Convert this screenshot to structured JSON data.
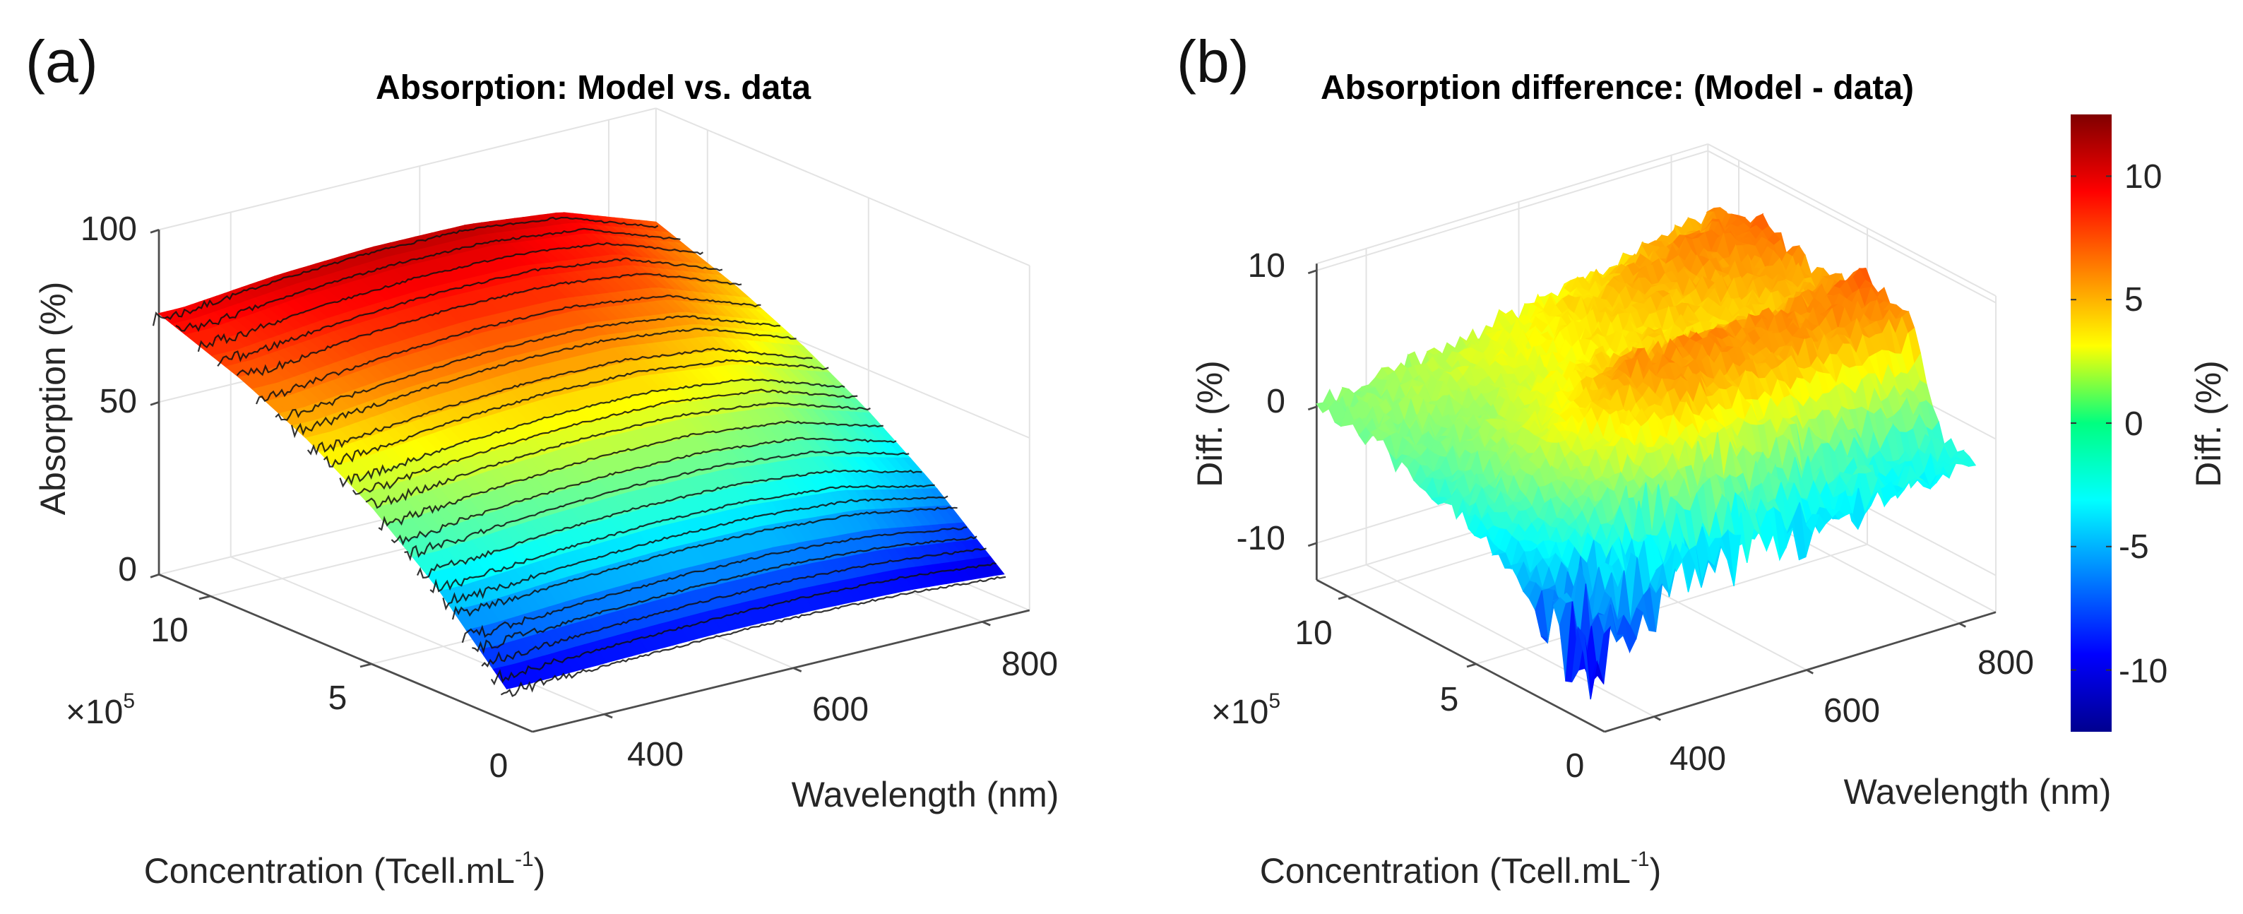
{
  "panels": [
    {
      "label": "(a)",
      "title": "Absorption: Model vs. data",
      "zlabel": "Absorption (%)",
      "xlabel": "Wavelength (nm)",
      "ylabel_main": "Concentration (Tcell.mL",
      "ylabel_sup": "-1",
      "ylabel_end": ")",
      "multiplier_base": "×10",
      "multiplier_exp": "5"
    },
    {
      "label": "(b)",
      "title": "Absorption difference: (Model - data)",
      "zlabel": "Diff. (%)",
      "xlabel": "Wavelength (nm)",
      "ylabel_main": "Concentration (Tcell.mL",
      "ylabel_sup": "-1",
      "ylabel_end": ")",
      "multiplier_base": "×10",
      "multiplier_exp": "5"
    }
  ],
  "chart_data": [
    {
      "type": "surface",
      "title": "Absorption: Model vs. data",
      "x": {
        "label": "Wavelength (nm)",
        "range": [
          324,
          850
        ],
        "ticks": [
          400,
          600,
          800
        ],
        "tick_labels": [
          "400",
          "600",
          "800"
        ]
      },
      "y": {
        "label": "Concentration (Tcell.mL^-1)",
        "multiplier": "×10^5",
        "range": [
          0,
          11.6
        ],
        "ticks": [
          0,
          5,
          10
        ],
        "tick_labels": [
          "0",
          "5",
          "10"
        ]
      },
      "z": {
        "label": "Absorption (%)",
        "range": [
          0,
          100
        ],
        "ticks": [
          0,
          50,
          100
        ],
        "tick_labels": [
          "0",
          "50",
          "100"
        ]
      },
      "grid": true,
      "colormap": "jet",
      "clim": [
        0,
        85
      ],
      "surface_grid_x": [
        350,
        450,
        550,
        650,
        750,
        850
      ],
      "surface_grid_y": [
        0.8,
        3,
        5,
        7,
        9,
        11.6
      ],
      "surface_z": [
        [
          9.3,
          10.0,
          10.5,
          10.4,
          9.5,
          7.4
        ],
        [
          30.6,
          32.7,
          33.9,
          33.7,
          31.3,
          24.9
        ],
        [
          45.7,
          48.3,
          49.8,
          49.6,
          46.5,
          38.0
        ],
        [
          57.4,
          60.3,
          61.9,
          61.7,
          58.3,
          48.8
        ],
        [
          66.6,
          69.5,
          71.1,
          70.9,
          67.5,
          57.7
        ],
        [
          75.7,
          78.4,
          79.8,
          79.6,
          76.5,
          67.0
        ]
      ],
      "measured_concentrations": [
        0.8,
        1.1,
        1.4,
        1.7,
        2.0,
        2.3,
        2.6,
        3.0,
        3.4,
        3.8,
        4.2,
        4.6,
        5.0,
        5.4,
        5.8,
        6.3,
        6.8,
        7.3,
        7.8,
        8.4,
        9.0,
        9.6,
        10.2,
        10.9,
        11.6
      ],
      "series": [
        {
          "name": "Model",
          "style": "colored surface"
        },
        {
          "name": "data",
          "style": "black lines"
        }
      ]
    },
    {
      "type": "surface",
      "title": "Absorption difference: (Model - data)",
      "x": {
        "label": "Wavelength (nm)",
        "range": [
          335,
          848
        ],
        "ticks": [
          400,
          600,
          800
        ],
        "tick_labels": [
          "400",
          "600",
          "800"
        ]
      },
      "y": {
        "label": "Concentration (Tcell.mL^-1)",
        "multiplier": "×10^5",
        "range": [
          0,
          11.2
        ],
        "ticks": [
          0,
          5,
          10
        ],
        "tick_labels": [
          "0",
          "5",
          "10"
        ]
      },
      "z": {
        "label": "Diff. (%)",
        "range": [
          -12.7,
          10.5
        ],
        "ticks": [
          -10,
          0,
          10
        ],
        "tick_labels": [
          "-10",
          "0",
          "10"
        ]
      },
      "grid": true,
      "colormap": "jet",
      "clim": [
        -12.5,
        12.5
      ],
      "surface_grid_x": [
        335,
        450,
        550,
        650,
        750,
        848
      ],
      "surface_grid_y": [
        0.8,
        2,
        3.5,
        5,
        6.5,
        8,
        9.5,
        11.2
      ],
      "surface_z": [
        [
          -9,
          -5,
          -4,
          -4,
          -3,
          -3
        ],
        [
          -7,
          -2,
          0,
          -1,
          -2,
          -2
        ],
        [
          -5,
          2,
          5,
          5,
          5,
          6
        ],
        [
          -3,
          3,
          6,
          6,
          6,
          7
        ],
        [
          -2,
          2,
          4,
          4,
          4,
          5
        ],
        [
          -1,
          1,
          3,
          4,
          5,
          6
        ],
        [
          0,
          1.5,
          3,
          4.5,
          6,
          7
        ],
        [
          0,
          1,
          2,
          3,
          4,
          5
        ]
      ],
      "colorbar": {
        "label": "Diff. (%)",
        "range": [
          -12.5,
          12.5
        ],
        "ticks": [
          -10,
          -5,
          0,
          5,
          10
        ],
        "tick_labels": [
          "-10",
          "-5",
          "0",
          "5",
          "10"
        ],
        "placement": "right"
      }
    }
  ]
}
